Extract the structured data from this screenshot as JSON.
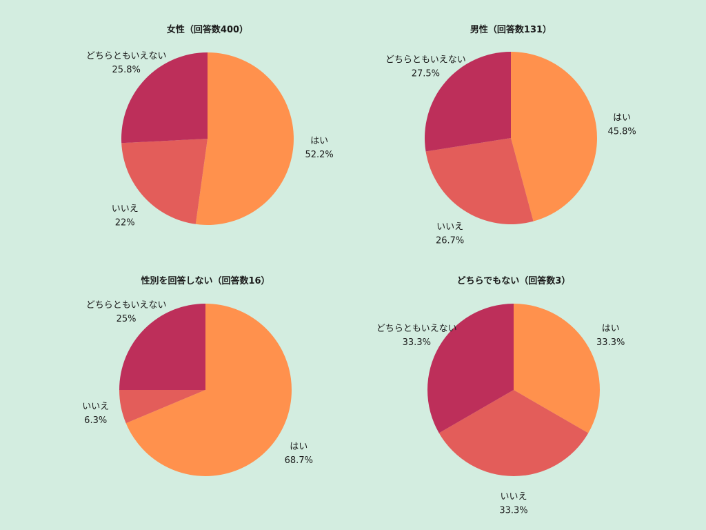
{
  "colors": {
    "background": "#d3ede0",
    "yes": "#ff914d",
    "no": "#e35d5a",
    "neither": "#bd2f5a"
  },
  "chart_data": [
    {
      "type": "pie",
      "title": "女性（回答数400）",
      "slices": [
        {
          "category": "はい",
          "value": 52.2,
          "label": "52.2%",
          "color": "#ff914d"
        },
        {
          "category": "いいえ",
          "value": 22,
          "label": "22%",
          "color": "#e35d5a"
        },
        {
          "category": "どちらともいえない",
          "value": 25.8,
          "label": "25.8%",
          "color": "#bd2f5a"
        }
      ]
    },
    {
      "type": "pie",
      "title": "男性（回答数131）",
      "slices": [
        {
          "category": "はい",
          "value": 45.8,
          "label": "45.8%",
          "color": "#ff914d"
        },
        {
          "category": "いいえ",
          "value": 26.7,
          "label": "26.7%",
          "color": "#e35d5a"
        },
        {
          "category": "どちらともいえない",
          "value": 27.5,
          "label": "27.5%",
          "color": "#bd2f5a"
        }
      ]
    },
    {
      "type": "pie",
      "title": "性別を回答しない（回答数16）",
      "slices": [
        {
          "category": "はい",
          "value": 68.7,
          "label": "68.7%",
          "color": "#ff914d"
        },
        {
          "category": "いいえ",
          "value": 6.3,
          "label": "6.3%",
          "color": "#e35d5a"
        },
        {
          "category": "どちらともいえない",
          "value": 25,
          "label": "25%",
          "color": "#bd2f5a"
        }
      ]
    },
    {
      "type": "pie",
      "title": "どちらでもない（回答数3）",
      "slices": [
        {
          "category": "はい",
          "value": 33.3,
          "label": "33.3%",
          "color": "#ff914d"
        },
        {
          "category": "いいえ",
          "value": 33.3,
          "label": "33.3%",
          "color": "#e35d5a"
        },
        {
          "category": "どちらともいえない",
          "value": 33.3,
          "label": "33.3%",
          "color": "#bd2f5a"
        }
      ]
    }
  ]
}
